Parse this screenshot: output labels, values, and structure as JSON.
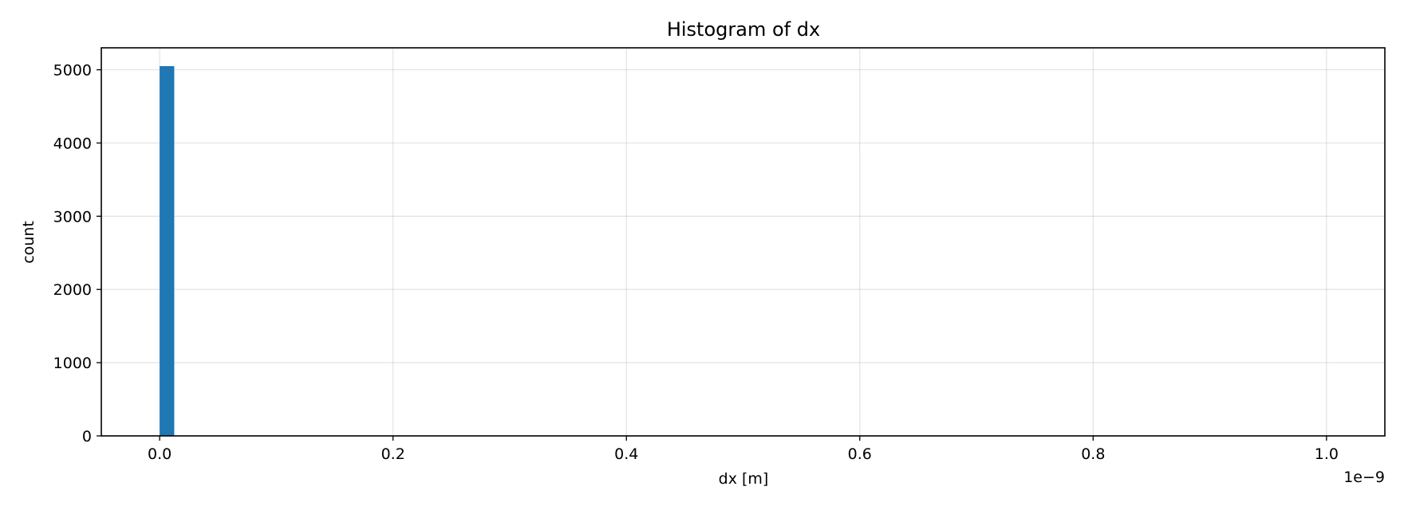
{
  "chart_data": {
    "type": "bar",
    "title": "Histogram of dx",
    "xlabel": "dx [m]",
    "ylabel": "count",
    "x_offset_label": "1e−9",
    "xlim": [
      -0.05,
      1.05
    ],
    "ylim": [
      0,
      5300
    ],
    "x_ticks": [
      0.0,
      0.2,
      0.4,
      0.6,
      0.8,
      1.0
    ],
    "x_tick_labels": [
      "0.0",
      "0.2",
      "0.4",
      "0.6",
      "0.8",
      "1.0"
    ],
    "y_ticks": [
      0,
      1000,
      2000,
      3000,
      4000,
      5000
    ],
    "y_tick_labels": [
      "0",
      "1000",
      "2000",
      "3000",
      "4000",
      "5000"
    ],
    "grid": true,
    "bar_color": "#1f77b4",
    "bins": [
      {
        "x0": 0.0,
        "x1": 0.0125,
        "count": 5050
      }
    ]
  }
}
